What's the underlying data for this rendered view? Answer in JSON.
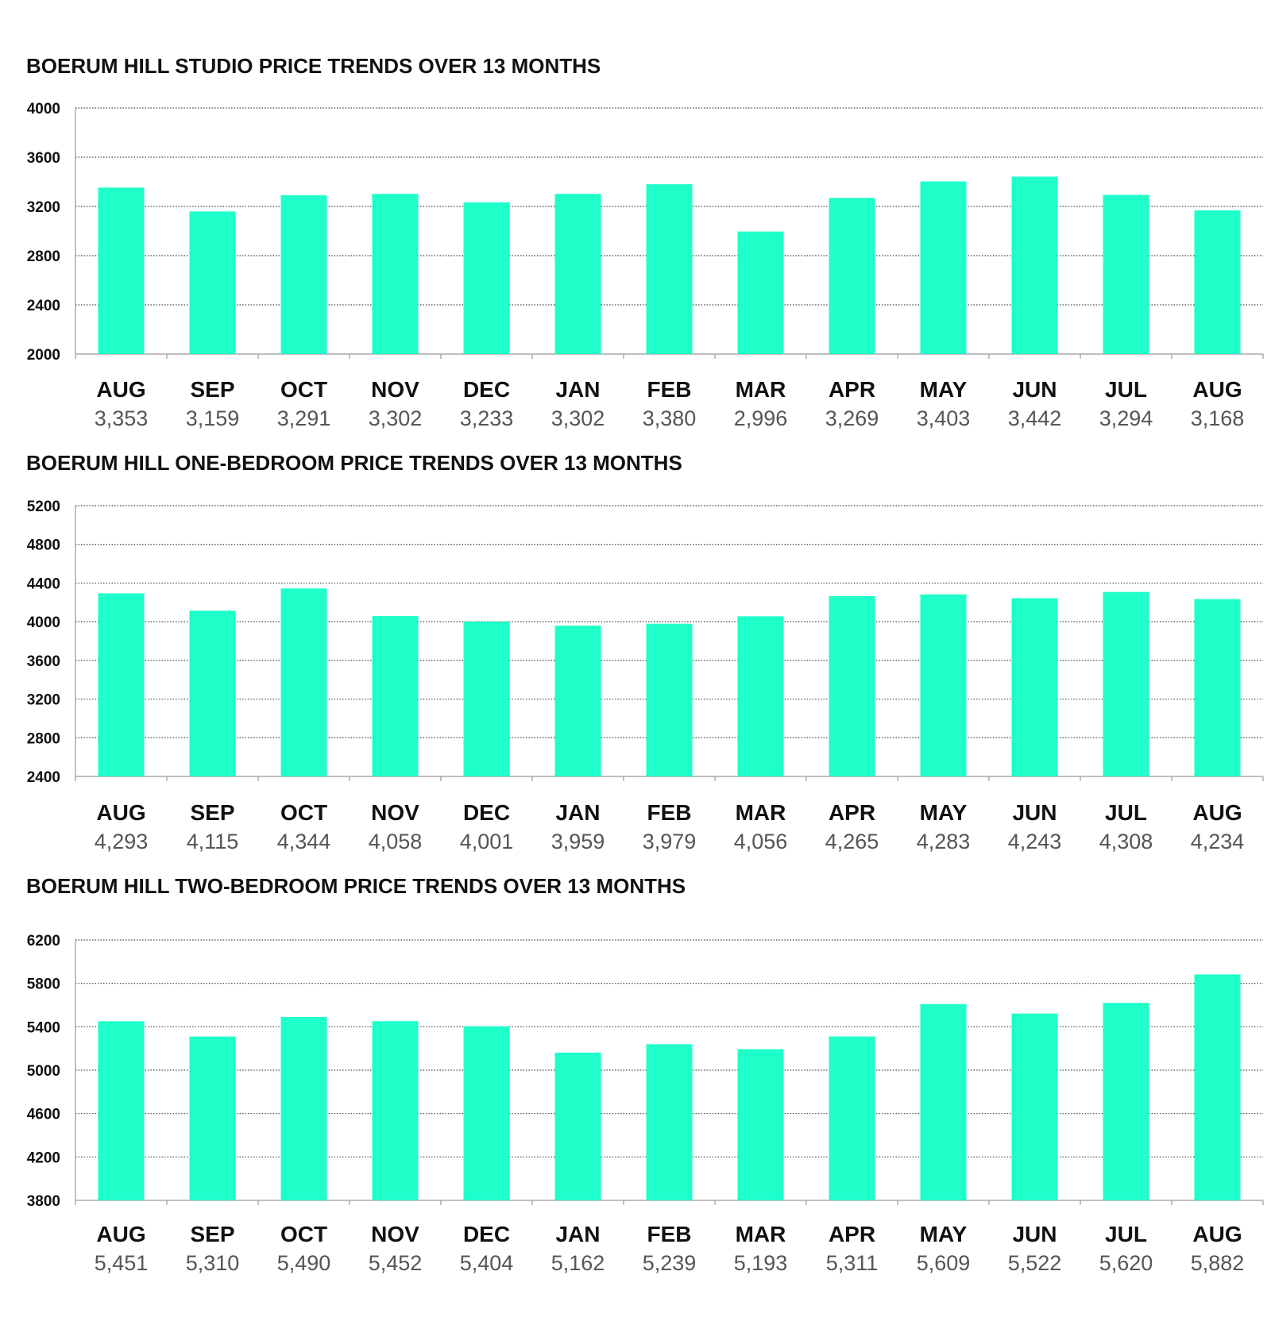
{
  "colors": {
    "bar": "#1effc9",
    "grid": "#444444",
    "axis": "#999999",
    "title": "#111111",
    "value_label": "#555555"
  },
  "chart_data": [
    {
      "type": "bar",
      "title": "BOERUM HILL STUDIO PRICE TRENDS OVER 13 MONTHS",
      "categories": [
        "AUG",
        "SEP",
        "OCT",
        "NOV",
        "DEC",
        "JAN",
        "FEB",
        "MAR",
        "APR",
        "MAY",
        "JUN",
        "JUL",
        "AUG"
      ],
      "values": [
        3353,
        3159,
        3291,
        3302,
        3233,
        3302,
        3380,
        2996,
        3269,
        3403,
        3442,
        3294,
        3168
      ],
      "value_labels": [
        "3,353",
        "3,159",
        "3,291",
        "3,302",
        "3,233",
        "3,302",
        "3,380",
        "2,996",
        "3,269",
        "3,403",
        "3,442",
        "3,294",
        "3,168"
      ],
      "ylim": [
        2000,
        4000
      ],
      "yticks": [
        2000,
        2400,
        2800,
        3200,
        3600,
        4000
      ],
      "grid": "horizontal-dotted",
      "legend": "none"
    },
    {
      "type": "bar",
      "title": "BOERUM HILL ONE-BEDROOM PRICE TRENDS OVER 13 MONTHS",
      "categories": [
        "AUG",
        "SEP",
        "OCT",
        "NOV",
        "DEC",
        "JAN",
        "FEB",
        "MAR",
        "APR",
        "MAY",
        "JUN",
        "JUL",
        "AUG"
      ],
      "values": [
        4293,
        4115,
        4344,
        4058,
        4001,
        3959,
        3979,
        4056,
        4265,
        4283,
        4243,
        4308,
        4234
      ],
      "value_labels": [
        "4,293",
        "4,115",
        "4,344",
        "4,058",
        "4,001",
        "3,959",
        "3,979",
        "4,056",
        "4,265",
        "4,283",
        "4,243",
        "4,308",
        "4,234"
      ],
      "ylim": [
        2400,
        5200
      ],
      "yticks": [
        2400,
        2800,
        3200,
        3600,
        4000,
        4400,
        4800,
        5200
      ],
      "grid": "horizontal-dotted",
      "legend": "none"
    },
    {
      "type": "bar",
      "title": "BOERUM HILL TWO-BEDROOM PRICE TRENDS OVER 13 MONTHS",
      "categories": [
        "AUG",
        "SEP",
        "OCT",
        "NOV",
        "DEC",
        "JAN",
        "FEB",
        "MAR",
        "APR",
        "MAY",
        "JUN",
        "JUL",
        "AUG"
      ],
      "values": [
        5451,
        5310,
        5490,
        5452,
        5404,
        5162,
        5239,
        5193,
        5311,
        5609,
        5522,
        5620,
        5882
      ],
      "value_labels": [
        "5,451",
        "5,310",
        "5,490",
        "5,452",
        "5,404",
        "5,162",
        "5,239",
        "5,193",
        "5,311",
        "5,609",
        "5,522",
        "5,620",
        "5,882"
      ],
      "ylim": [
        3800,
        6200
      ],
      "yticks": [
        3800,
        4200,
        4600,
        5000,
        5400,
        5800,
        6200
      ],
      "grid": "horizontal-dotted",
      "legend": "none"
    }
  ]
}
